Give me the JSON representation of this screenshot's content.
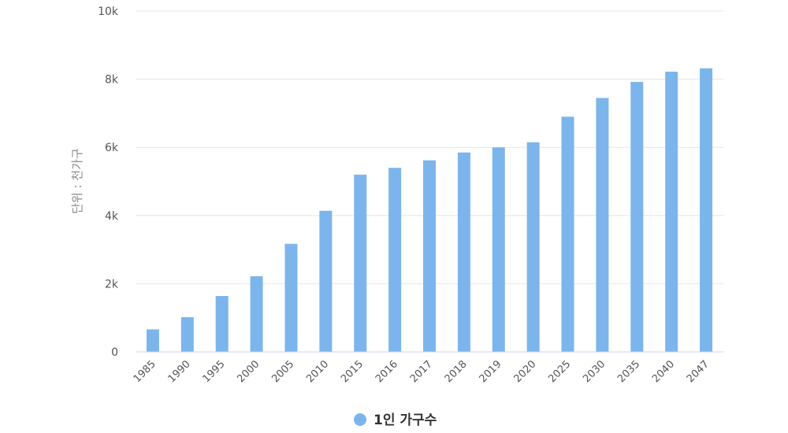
{
  "chart_data": {
    "type": "bar",
    "categories": [
      "1985",
      "1990",
      "1995",
      "2000",
      "2005",
      "2010",
      "2015",
      "2016",
      "2017",
      "2018",
      "2019",
      "2020",
      "2025",
      "2030",
      "2035",
      "2040",
      "2047"
    ],
    "series": [
      {
        "name": "1인 가구수",
        "values": [
          660,
          1020,
          1640,
          2220,
          3170,
          4140,
          5200,
          5400,
          5620,
          5850,
          6000,
          6150,
          6900,
          7450,
          7920,
          8220,
          8320
        ],
        "color": "#7cb5ec"
      }
    ],
    "ylabel": "단위 : 천가구",
    "ylim": [
      0,
      10000
    ],
    "yticks": [
      {
        "value": 0,
        "label": "0"
      },
      {
        "value": 2000,
        "label": "2k"
      },
      {
        "value": 4000,
        "label": "4k"
      },
      {
        "value": 6000,
        "label": "6k"
      },
      {
        "value": 8000,
        "label": "8k"
      },
      {
        "value": 10000,
        "label": "10k"
      }
    ],
    "grid": true,
    "legend_position": "bottom-center"
  }
}
